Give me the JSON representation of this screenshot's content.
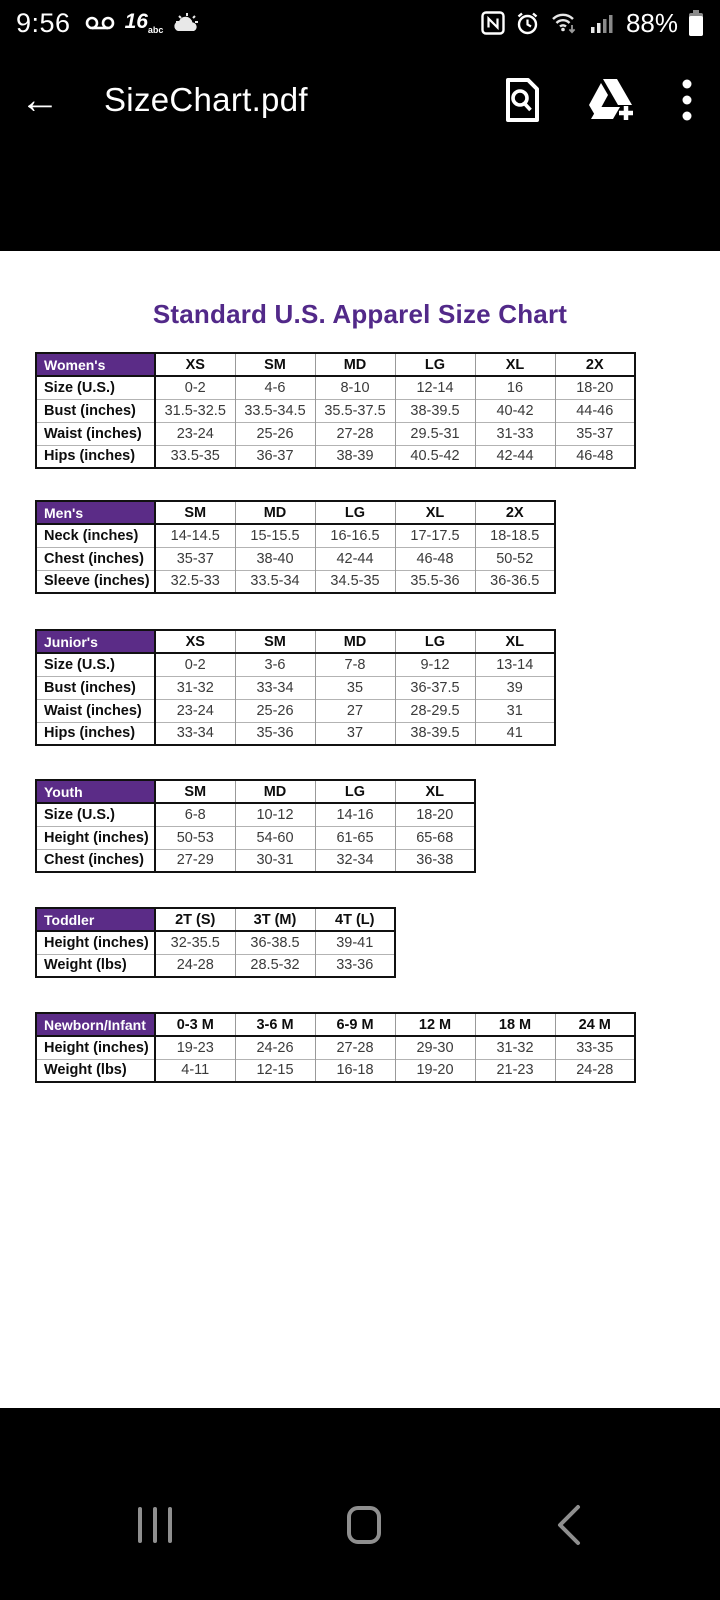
{
  "status_bar": {
    "time": "9:56",
    "battery_percent": "88%",
    "channel_badge": "16",
    "channel_sub": "abc"
  },
  "app_bar": {
    "title": "SizeChart.pdf"
  },
  "document": {
    "title": "Standard U.S. Apparel Size Chart",
    "accent_purple": "#5b2c87",
    "title_purple": "#522989",
    "tables": [
      {
        "name": "Women's",
        "columns": [
          "XS",
          "SM",
          "MD",
          "LG",
          "XL",
          "2X"
        ],
        "rows": [
          {
            "label": "Size (U.S.)",
            "values": [
              "0-2",
              "4-6",
              "8-10",
              "12-14",
              "16",
              "18-20"
            ]
          },
          {
            "label": "Bust (inches)",
            "values": [
              "31.5-32.5",
              "33.5-34.5",
              "35.5-37.5",
              "38-39.5",
              "40-42",
              "44-46"
            ]
          },
          {
            "label": "Waist (inches)",
            "values": [
              "23-24",
              "25-26",
              "27-28",
              "29.5-31",
              "31-33",
              "35-37"
            ]
          },
          {
            "label": "Hips (inches)",
            "values": [
              "33.5-35",
              "36-37",
              "38-39",
              "40.5-42",
              "42-44",
              "46-48"
            ]
          }
        ]
      },
      {
        "name": "Men's",
        "columns": [
          "SM",
          "MD",
          "LG",
          "XL",
          "2X"
        ],
        "rows": [
          {
            "label": "Neck (inches)",
            "values": [
              "14-14.5",
              "15-15.5",
              "16-16.5",
              "17-17.5",
              "18-18.5"
            ]
          },
          {
            "label": "Chest (inches)",
            "values": [
              "35-37",
              "38-40",
              "42-44",
              "46-48",
              "50-52"
            ]
          },
          {
            "label": "Sleeve (inches)",
            "values": [
              "32.5-33",
              "33.5-34",
              "34.5-35",
              "35.5-36",
              "36-36.5"
            ]
          }
        ]
      },
      {
        "name": "Junior's",
        "columns": [
          "XS",
          "SM",
          "MD",
          "LG",
          "XL"
        ],
        "rows": [
          {
            "label": "Size (U.S.)",
            "values": [
              "0-2",
              "3-6",
              "7-8",
              "9-12",
              "13-14"
            ]
          },
          {
            "label": "Bust (inches)",
            "values": [
              "31-32",
              "33-34",
              "35",
              "36-37.5",
              "39"
            ]
          },
          {
            "label": "Waist (inches)",
            "values": [
              "23-24",
              "25-26",
              "27",
              "28-29.5",
              "31"
            ]
          },
          {
            "label": "Hips (inches)",
            "values": [
              "33-34",
              "35-36",
              "37",
              "38-39.5",
              "41"
            ]
          }
        ]
      },
      {
        "name": "Youth",
        "columns": [
          "SM",
          "MD",
          "LG",
          "XL"
        ],
        "rows": [
          {
            "label": "Size (U.S.)",
            "values": [
              "6-8",
              "10-12",
              "14-16",
              "18-20"
            ]
          },
          {
            "label": "Height (inches)",
            "values": [
              "50-53",
              "54-60",
              "61-65",
              "65-68"
            ]
          },
          {
            "label": "Chest (inches)",
            "values": [
              "27-29",
              "30-31",
              "32-34",
              "36-38"
            ]
          }
        ]
      },
      {
        "name": "Toddler",
        "columns": [
          "2T (S)",
          "3T (M)",
          "4T (L)"
        ],
        "rows": [
          {
            "label": "Height (inches)",
            "values": [
              "32-35.5",
              "36-38.5",
              "39-41"
            ]
          },
          {
            "label": "Weight (lbs)",
            "values": [
              "24-28",
              "28.5-32",
              "33-36"
            ]
          }
        ]
      },
      {
        "name": "Newborn/Infant",
        "columns": [
          "0-3 M",
          "3-6 M",
          "6-9 M",
          "12 M",
          "18 M",
          "24 M"
        ],
        "rows": [
          {
            "label": "Height (inches)",
            "values": [
              "19-23",
              "24-26",
              "27-28",
              "29-30",
              "31-32",
              "33-35"
            ]
          },
          {
            "label": "Weight (lbs)",
            "values": [
              "4-11",
              "12-15",
              "16-18",
              "19-20",
              "21-23",
              "24-28"
            ]
          }
        ]
      }
    ]
  }
}
